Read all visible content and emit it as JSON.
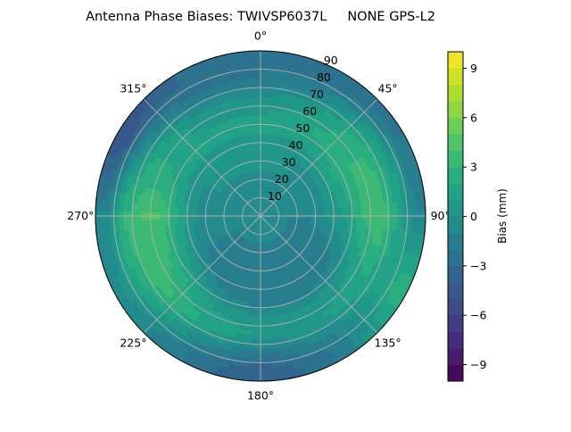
{
  "chart_data": {
    "type": "heatmap",
    "subtype": "polar-filled-contour",
    "title": "Antenna Phase Biases: TWIVSP6037L     NONE GPS-L2",
    "colorbar_label": "Bias (mm)",
    "colormap": "viridis",
    "color_range": [
      -10,
      10
    ],
    "contour_level_step": 1,
    "colorbar_ticks": [
      "−9",
      "−6",
      "−3",
      "0",
      "3",
      "6",
      "9"
    ],
    "colorbar_tick_values": [
      -9,
      -6,
      -3,
      0,
      3,
      6,
      9
    ],
    "azimuth_tick_labels": [
      "0°",
      "45°",
      "90°",
      "135°",
      "180°",
      "225°",
      "270°",
      "315°"
    ],
    "azimuth_tick_values": [
      0,
      45,
      90,
      135,
      180,
      225,
      270,
      315
    ],
    "azimuth_direction": "clockwise, 0° at top",
    "radial_tick_labels": [
      "10",
      "20",
      "30",
      "40",
      "50",
      "60",
      "70",
      "80",
      "90"
    ],
    "radial_tick_values": [
      10,
      20,
      30,
      40,
      50,
      60,
      70,
      80,
      90
    ],
    "radial_range": [
      0,
      90
    ],
    "grid": true,
    "grid_azimuths_deg": [
      0,
      30,
      60,
      90,
      120,
      150,
      180,
      210,
      240,
      270,
      300,
      330
    ],
    "grid_zenith_deg": [
      5,
      15,
      25,
      35,
      45,
      55,
      65,
      75,
      85
    ],
    "values_mm": [
      [
        -1,
        -1,
        -1,
        -1,
        -1,
        -1,
        -1,
        -1,
        -1,
        -1,
        -1,
        -1
      ],
      [
        -1,
        -1,
        -1,
        -1,
        -1,
        -1,
        -1,
        -1,
        -1,
        -1,
        -1,
        -1
      ],
      [
        0,
        0,
        -1,
        -1,
        -2,
        -2,
        -2,
        -2,
        -1,
        -1,
        0,
        0
      ],
      [
        0,
        0,
        0,
        0,
        -2,
        -2,
        -2,
        -2,
        -1,
        0,
        0,
        0
      ],
      [
        1,
        1,
        2,
        1,
        -1,
        -2,
        -2,
        -1,
        1,
        2,
        1,
        1
      ],
      [
        1,
        2,
        3,
        3,
        1,
        0,
        0,
        1,
        3,
        4,
        2,
        1
      ],
      [
        0,
        1,
        3,
        4,
        2,
        1,
        1,
        2,
        4,
        4,
        2,
        0
      ],
      [
        -2,
        -1,
        1,
        2,
        1,
        -1,
        -2,
        0,
        2,
        3,
        -1,
        -2
      ],
      [
        -2,
        -3,
        -2,
        -1,
        3,
        -2,
        -4,
        -2,
        0,
        -1,
        -5,
        -3
      ]
    ]
  }
}
